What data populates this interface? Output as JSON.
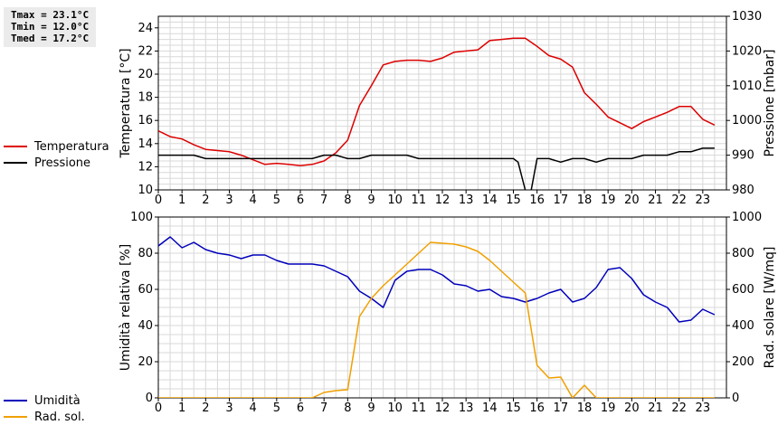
{
  "stats": [
    {
      "label": "Tmax",
      "value": "23.1°C"
    },
    {
      "label": "Tmin",
      "value": "12.0°C"
    },
    {
      "label": "Tmed",
      "value": "17.2°C"
    }
  ],
  "colors": {
    "temperature": "#dd0000",
    "pressure": "#000000",
    "humidity": "#0000bb",
    "solar": "#f0a000",
    "grid": "#d8d8d8",
    "axis": "#000000"
  },
  "chart_data": [
    {
      "type": "line",
      "grid": true,
      "x_ticks": [
        "0",
        "1",
        "2",
        "3",
        "4",
        "5",
        "6",
        "7",
        "8",
        "9",
        "10",
        "11",
        "12",
        "13",
        "14",
        "15",
        "16",
        "17",
        "18",
        "19",
        "20",
        "21",
        "22",
        "23"
      ],
      "xlim": [
        0,
        24
      ],
      "ylabel": "Temperatura [°C]",
      "ylim": [
        10,
        25
      ],
      "y_ticks": [
        "10",
        "12",
        "14",
        "16",
        "18",
        "20",
        "22",
        "24"
      ],
      "y2label": "Pressione [mbar]",
      "y2lim": [
        980,
        1030
      ],
      "y2_ticks": [
        "980",
        "990",
        "1000",
        "1010",
        "1020",
        "1030"
      ],
      "series": [
        {
          "name": "Temperatura",
          "axis": "left",
          "color": "#dd0000",
          "x": [
            0,
            0.5,
            1,
            1.5,
            2,
            2.5,
            3,
            3.5,
            4,
            4.5,
            5,
            5.5,
            6,
            6.5,
            7,
            7.5,
            8,
            8.5,
            9,
            9.5,
            10,
            10.5,
            11,
            11.5,
            12,
            12.5,
            13,
            13.5,
            14,
            14.5,
            15,
            15.5,
            16,
            16.5,
            17,
            17.5,
            18,
            18.5,
            19,
            19.5,
            20,
            20.5,
            21,
            21.5,
            22,
            22.5,
            23,
            23.5
          ],
          "y": [
            15.1,
            14.6,
            14.4,
            13.9,
            13.5,
            13.4,
            13.3,
            13.0,
            12.6,
            12.2,
            12.3,
            12.2,
            12.1,
            12.2,
            12.5,
            13.2,
            14.3,
            17.3,
            19.0,
            20.8,
            21.1,
            21.2,
            21.2,
            21.1,
            21.4,
            21.9,
            22.0,
            22.1,
            22.9,
            23.0,
            23.1,
            23.1,
            22.4,
            21.6,
            21.3,
            20.6,
            18.4,
            17.4,
            16.3,
            15.8,
            15.3,
            15.9,
            16.3,
            16.7,
            17.2,
            17.2,
            16.1,
            15.6
          ]
        },
        {
          "name": "Pressione",
          "axis": "right",
          "color": "#000000",
          "x": [
            0,
            0.5,
            1,
            1.5,
            2,
            2.5,
            3,
            3.5,
            4,
            4.5,
            5,
            5.5,
            6,
            6.5,
            7,
            7.5,
            8,
            8.5,
            9,
            9.5,
            10,
            10.5,
            11,
            11.5,
            12,
            12.5,
            13,
            13.5,
            14,
            14.5,
            15,
            15.2,
            15.5,
            15.7,
            16,
            16.5,
            17,
            17.5,
            18,
            18.5,
            19,
            19.5,
            20,
            20.5,
            21,
            21.5,
            22,
            22.5,
            23,
            23.5
          ],
          "y": [
            990,
            990,
            990,
            990,
            989,
            989,
            989,
            989,
            989,
            989,
            989,
            989,
            989,
            989,
            990,
            990,
            989,
            989,
            990,
            990,
            990,
            990,
            989,
            989,
            989,
            989,
            989,
            989,
            989,
            989,
            989,
            988,
            980,
            978,
            989,
            989,
            988,
            989,
            989,
            988,
            989,
            989,
            989,
            990,
            990,
            990,
            991,
            991,
            992,
            992
          ]
        }
      ]
    },
    {
      "type": "line",
      "grid": true,
      "x_ticks": [
        "0",
        "1",
        "2",
        "3",
        "4",
        "5",
        "6",
        "7",
        "8",
        "9",
        "10",
        "11",
        "12",
        "13",
        "14",
        "15",
        "16",
        "17",
        "18",
        "19",
        "20",
        "21",
        "22",
        "23"
      ],
      "xlim": [
        0,
        24
      ],
      "ylabel": "Umidità relativa [%]",
      "ylim": [
        0,
        100
      ],
      "y_ticks": [
        "0",
        "20",
        "40",
        "60",
        "80",
        "100"
      ],
      "y2label": "Rad. solare [W/mq]",
      "y2lim": [
        0,
        1000
      ],
      "y2_ticks": [
        "0",
        "200",
        "400",
        "600",
        "800",
        "1000"
      ],
      "series": [
        {
          "name": "Umidità",
          "axis": "left",
          "color": "#0000bb",
          "x": [
            0,
            0.5,
            1,
            1.5,
            2,
            2.5,
            3,
            3.5,
            4,
            4.5,
            5,
            5.5,
            6,
            6.5,
            7,
            7.5,
            8,
            8.5,
            9,
            9.5,
            10,
            10.5,
            11,
            11.5,
            12,
            12.5,
            13,
            13.5,
            14,
            14.5,
            15,
            15.5,
            16,
            16.5,
            17,
            17.5,
            18,
            18.5,
            19,
            19.5,
            20,
            20.5,
            21,
            21.5,
            22,
            22.5,
            23,
            23.5
          ],
          "y": [
            84,
            89,
            83,
            86,
            82,
            80,
            79,
            77,
            79,
            79,
            76,
            74,
            74,
            74,
            73,
            70,
            67,
            59,
            55,
            50,
            65,
            70,
            71,
            71,
            68,
            63,
            62,
            59,
            60,
            56,
            55,
            53,
            55,
            58,
            60,
            53,
            55,
            61,
            71,
            72,
            66,
            57,
            53,
            50,
            42,
            43,
            49,
            46
          ]
        },
        {
          "name": "Rad. sol.",
          "axis": "right",
          "color": "#f0a000",
          "x": [
            0,
            0.5,
            1,
            1.5,
            2,
            2.5,
            3,
            3.5,
            4,
            4.5,
            5,
            5.5,
            6,
            6.5,
            7,
            7.5,
            8,
            8.5,
            9,
            9.5,
            10,
            10.5,
            11,
            11.5,
            12,
            12.5,
            13,
            13.5,
            14,
            14.5,
            15,
            15.5,
            16,
            16.5,
            17,
            17.5,
            18,
            18.5,
            19,
            19.5,
            20,
            20.5,
            21,
            21.5,
            22,
            22.5,
            23,
            23.5
          ],
          "y": [
            0,
            0,
            0,
            0,
            0,
            0,
            0,
            0,
            0,
            0,
            0,
            0,
            0,
            0,
            30,
            40,
            45,
            450,
            550,
            620,
            680,
            740,
            800,
            860,
            855,
            850,
            835,
            810,
            760,
            700,
            640,
            580,
            180,
            110,
            115,
            0,
            70,
            0,
            0,
            0,
            0,
            0,
            0,
            0,
            0,
            0,
            0,
            0
          ]
        }
      ]
    }
  ]
}
